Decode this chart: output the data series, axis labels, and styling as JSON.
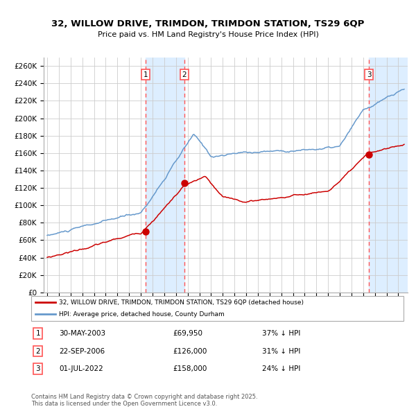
{
  "title": "32, WILLOW DRIVE, TRIMDON, TRIMDON STATION, TS29 6QP",
  "subtitle": "Price paid vs. HM Land Registry's House Price Index (HPI)",
  "legend_red": "32, WILLOW DRIVE, TRIMDON, TRIMDON STATION, TS29 6QP (detached house)",
  "legend_blue": "HPI: Average price, detached house, County Durham",
  "footer": "Contains HM Land Registry data © Crown copyright and database right 2025.\nThis data is licensed under the Open Government Licence v3.0.",
  "sale_labels": [
    {
      "num": "1",
      "date": "30-MAY-2003",
      "price": "£69,950",
      "note": "37% ↓ HPI"
    },
    {
      "num": "2",
      "date": "22-SEP-2006",
      "price": "£126,000",
      "note": "31% ↓ HPI"
    },
    {
      "num": "3",
      "date": "01-JUL-2022",
      "price": "£158,000",
      "note": "24% ↓ HPI"
    }
  ],
  "sale_dates": [
    2003.41,
    2006.72,
    2022.5
  ],
  "sale_prices": [
    69950,
    126000,
    158000
  ],
  "red_color": "#cc0000",
  "blue_color": "#6699cc",
  "shade_color": "#ddeeff",
  "dashed_color": "#ff5555",
  "ylim": [
    0,
    270000
  ],
  "ytick_step": 20000,
  "xlim_min": 1994.7,
  "xlim_max": 2025.8,
  "background_color": "#ffffff",
  "grid_color": "#cccccc"
}
